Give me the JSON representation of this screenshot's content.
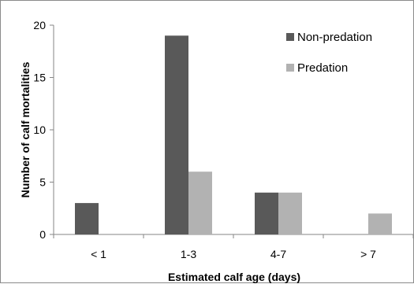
{
  "chart_data": {
    "type": "bar",
    "title": "",
    "xlabel": "Estimated calf age (days)",
    "ylabel": "Number of calf mortalities",
    "categories": [
      "< 1",
      "1-3",
      "4-7",
      "> 7"
    ],
    "series": [
      {
        "name": "Non-predation",
        "values": [
          3,
          19,
          4,
          0
        ],
        "color": "#595959"
      },
      {
        "name": "Predation",
        "values": [
          0,
          6,
          4,
          2
        ],
        "color": "#b2b2b2"
      }
    ],
    "ylim": [
      0,
      20
    ],
    "yticks": [
      0,
      5,
      10,
      15,
      20
    ],
    "grid": false,
    "legend_position": "top-right"
  }
}
